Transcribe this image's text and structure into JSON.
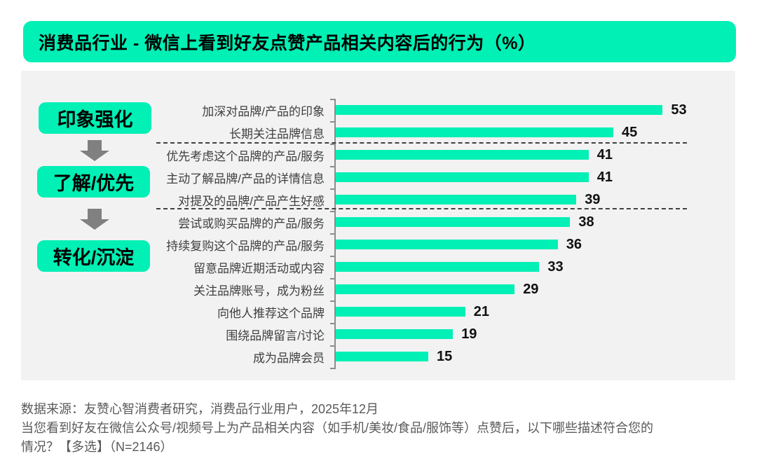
{
  "header": {
    "title": "消费品行业 - 微信上看到好友点赞产品相关内容后的行为（%）"
  },
  "flow": {
    "stages": [
      "印象强化",
      "了解/优先",
      "转化/沉淀"
    ],
    "arrow_icon": "down-arrow"
  },
  "chart_data": {
    "type": "bar",
    "orientation": "horizontal",
    "unit": "%",
    "title": "消费品行业 - 微信上看到好友点赞产品相关内容后的行为（%）",
    "categories": [
      "加深对品牌/产品的印象",
      "长期关注品牌信息",
      "优先考虑这个品牌的产品/服务",
      "主动了解品牌/产品的详情信息",
      "对提及的品牌/产品产生好感",
      "尝试或购买品牌的产品/服务",
      "持续复购这个品牌的产品/服务",
      "留意品牌近期活动或内容",
      "关注品牌账号，成为粉丝",
      "向他人推荐这个品牌",
      "围绕品牌留言/讨论",
      "成为品牌会员"
    ],
    "values": [
      53,
      45,
      41,
      41,
      39,
      38,
      36,
      33,
      29,
      21,
      19,
      15
    ],
    "groups": [
      {
        "stage": "印象强化",
        "category_indexes": [
          0,
          1
        ]
      },
      {
        "stage": "了解/优先",
        "category_indexes": [
          2,
          3,
          4
        ]
      },
      {
        "stage": "转化/沉淀",
        "category_indexes": [
          5,
          6,
          7,
          8,
          9,
          10,
          11
        ]
      }
    ],
    "xlim": [
      0,
      57
    ],
    "grid": false,
    "legend": false,
    "value_labels": "end-of-bar",
    "bar_color": "#00F0B5"
  },
  "footer": {
    "source": "数据来源：友赞心智消费者研究，消费品行业用户，2025年12月",
    "question_line1": "当您看到好友在微信公众号/视频号上为产品相关内容（如手机/美妆/食品/服饰等）点赞后，以下哪些描述符合您的",
    "question_line2": "情况？【多选】（N=2146）"
  },
  "colors": {
    "accent_green": "#00F0B5",
    "arrow_gray": "#808080",
    "panel_bg": "#F2F2F2",
    "axis_gray": "#8C8C8C",
    "footnote_gray": "#595959"
  }
}
